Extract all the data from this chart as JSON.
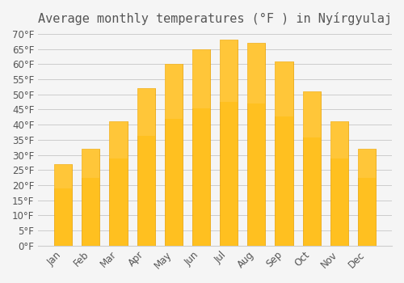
{
  "title": "Average monthly temperatures (°F ) in Nyírgyulaj",
  "months": [
    "Jan",
    "Feb",
    "Mar",
    "Apr",
    "May",
    "Jun",
    "Jul",
    "Aug",
    "Sep",
    "Oct",
    "Nov",
    "Dec"
  ],
  "values": [
    27,
    32,
    41,
    52,
    60,
    65,
    68,
    67,
    61,
    51,
    41,
    32
  ],
  "bar_color_top": "#FFC020",
  "bar_color_bottom": "#FFB000",
  "background_color": "#f5f5f5",
  "grid_color": "#cccccc",
  "text_color": "#555555",
  "ylim": [
    0,
    70
  ],
  "ytick_step": 5,
  "title_fontsize": 11,
  "tick_fontsize": 8.5
}
